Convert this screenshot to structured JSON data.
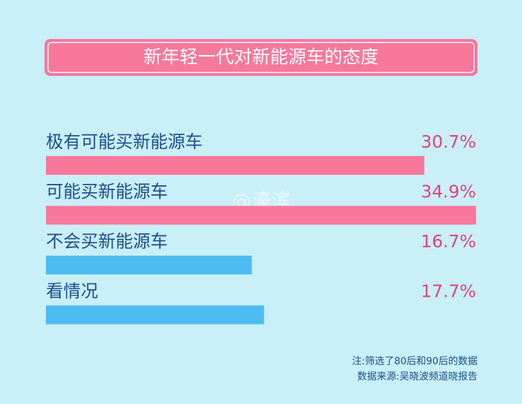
{
  "chart_data": {
    "type": "bar",
    "orientation": "horizontal",
    "title": "新年轻一代对新能源车的态度",
    "categories": [
      "极有可能买新能源车",
      "可能买新能源车",
      "不会买新能源车",
      "看情况"
    ],
    "values": [
      30.7,
      34.9,
      16.7,
      17.7
    ],
    "value_labels": [
      "30.7%",
      "34.9%",
      "16.7%",
      "17.7%"
    ],
    "colors": [
      "#f7789b",
      "#f7789b",
      "#4dbdf1",
      "#4dbdf1"
    ],
    "watermark": "@濠滨",
    "notes": [
      "注:筛选了80后和90后的数据",
      "数据来源:吴晓波频道晓报告"
    ]
  }
}
